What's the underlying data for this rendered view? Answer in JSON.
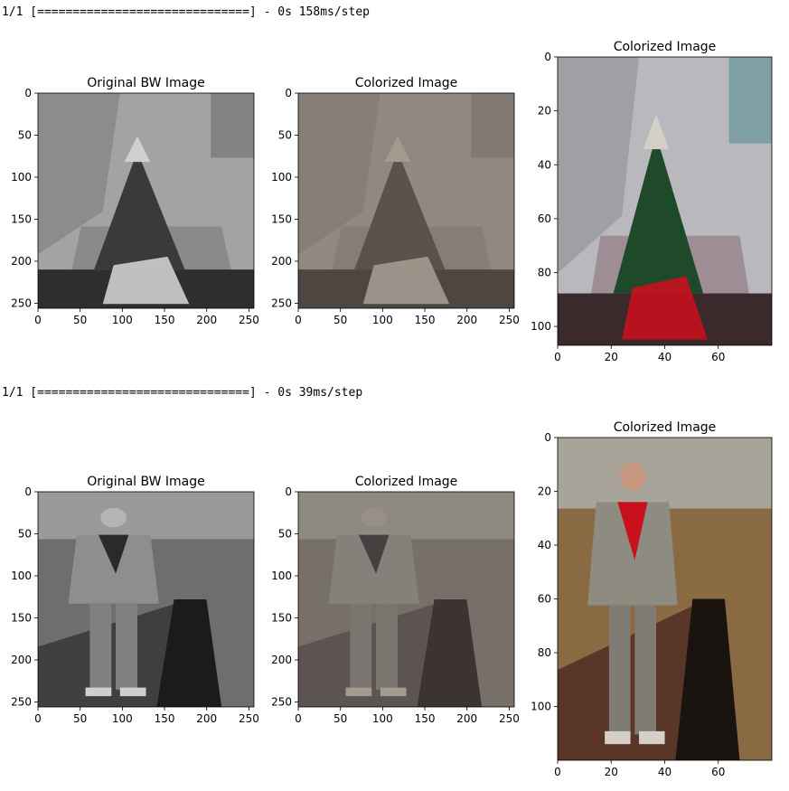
{
  "outputs": [
    {
      "log": "1/1 [==============================] - 0s 158ms/step",
      "panels": [
        {
          "title": "Original BW Image",
          "x_ticks": [
            "0",
            "50",
            "100",
            "150",
            "200",
            "250"
          ],
          "y_ticks": [
            "0",
            "50",
            "100",
            "150",
            "200",
            "250"
          ],
          "scene": "tree",
          "style": "bw"
        },
        {
          "title": "Colorized Image",
          "x_ticks": [
            "0",
            "50",
            "100",
            "150",
            "200",
            "250"
          ],
          "y_ticks": [
            "0",
            "50",
            "100",
            "150",
            "200",
            "250"
          ],
          "scene": "tree",
          "style": "muted"
        },
        {
          "title": "Colorized Image",
          "x_ticks": [
            "0",
            "20",
            "40",
            "60"
          ],
          "y_ticks": [
            "0",
            "20",
            "40",
            "60",
            "80",
            "100"
          ],
          "scene": "tree",
          "style": "color"
        }
      ]
    },
    {
      "log": "1/1 [==============================] - 0s 39ms/step",
      "panels": [
        {
          "title": "Original BW Image",
          "x_ticks": [
            "0",
            "50",
            "100",
            "150",
            "200",
            "250"
          ],
          "y_ticks": [
            "0",
            "50",
            "100",
            "150",
            "200",
            "250"
          ],
          "scene": "man",
          "style": "bw"
        },
        {
          "title": "Colorized Image",
          "x_ticks": [
            "0",
            "50",
            "100",
            "150",
            "200",
            "250"
          ],
          "y_ticks": [
            "0",
            "50",
            "100",
            "150",
            "200",
            "250"
          ],
          "scene": "man",
          "style": "muted"
        },
        {
          "title": "Colorized Image",
          "x_ticks": [
            "0",
            "20",
            "40",
            "60"
          ],
          "y_ticks": [
            "0",
            "20",
            "40",
            "60",
            "80",
            "100"
          ],
          "scene": "man",
          "style": "color"
        }
      ]
    }
  ]
}
